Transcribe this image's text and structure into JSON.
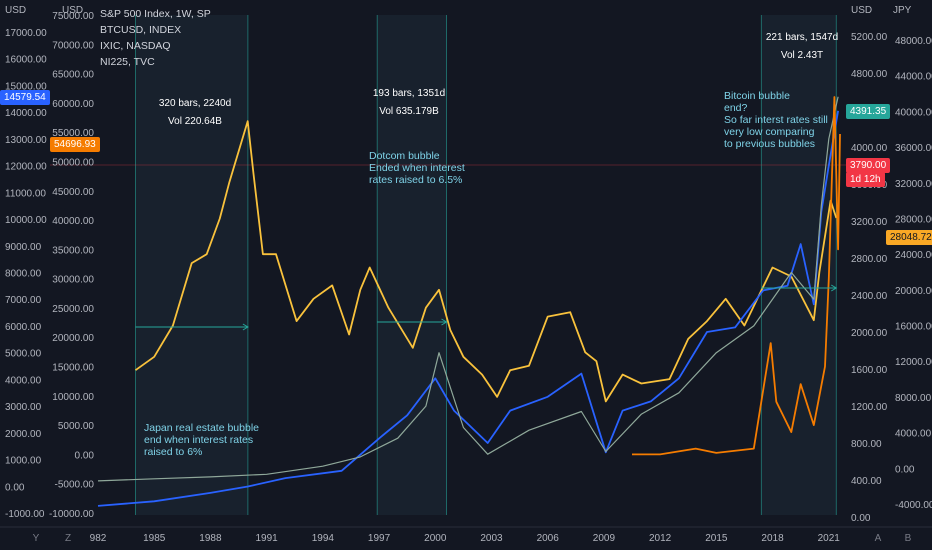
{
  "legend": [
    "S&P 500 Index, 1W, SP",
    "BTCUSD, INDEX",
    "IXIC, NASDAQ",
    "NI225, TVC"
  ],
  "axis_units": {
    "left1": "USD",
    "left2": "USD",
    "right1": "USD",
    "right2": "JPY"
  },
  "left_badges": {
    "blue": {
      "text": "14579.54",
      "color": "#2962ff"
    },
    "orange": {
      "text": "54696.93",
      "color": "#f57c00"
    }
  },
  "right_badges": {
    "blue": {
      "text": "4391.35",
      "color": "#26a69a"
    },
    "red": {
      "text": "3790.00",
      "color": "#f23645"
    },
    "red_sub": {
      "text": "1d 12h",
      "color": "#f23645"
    },
    "yellow": {
      "text": "28048.72",
      "color": "#f9a825"
    }
  },
  "measures": [
    {
      "bars": "320 bars, 2240d",
      "vol": "Vol 220.64B"
    },
    {
      "bars": "193 bars, 1351d",
      "vol": "Vol 635.179B"
    },
    {
      "bars": "221 bars, 1547d",
      "vol": "Vol 2.43T"
    }
  ],
  "notes": {
    "japan": "Japan real estate bubble\nend when interest rates\nraised to 6%",
    "dotcom": "Dotcom bubble\nEnded when interest\nrates raised to 6.5%",
    "bitcoin": "Bitcoin bubble\nend?\nSo far interst rates still\nvery low comparing\nto previous bubbles"
  },
  "footer_icons": [
    "Y",
    "Z",
    "A",
    "B"
  ],
  "chart_data": {
    "type": "line",
    "x_ticks": [
      "982",
      "1985",
      "1988",
      "1991",
      "1994",
      "1997",
      "2000",
      "2003",
      "2006",
      "2009",
      "2012",
      "2015",
      "2018",
      "2021"
    ],
    "axes": {
      "left1": {
        "unit": "USD",
        "ticks": [
          "17000.00",
          "16000.00",
          "15000.00",
          "14000.00",
          "13000.00",
          "12000.00",
          "11000.00",
          "10000.00",
          "9000.00",
          "8000.00",
          "7000.00",
          "6000.00",
          "5000.00",
          "4000.00",
          "3000.00",
          "2000.00",
          "1000.00",
          "0.00",
          "-1000.00"
        ]
      },
      "left2": {
        "unit": "USD",
        "ticks": [
          "75000.00",
          "70000.00",
          "65000.00",
          "60000.00",
          "55000.00",
          "50000.00",
          "45000.00",
          "40000.00",
          "35000.00",
          "30000.00",
          "25000.00",
          "20000.00",
          "15000.00",
          "10000.00",
          "5000.00",
          "0.00",
          "-5000.00",
          "-10000.00"
        ]
      },
      "right1": {
        "unit": "USD",
        "ticks": [
          "5200.00",
          "4800.00",
          "4400.00",
          "4000.00",
          "3600.00",
          "3200.00",
          "2800.00",
          "2400.00",
          "2000.00",
          "1600.00",
          "1200.00",
          "800.00",
          "400.00",
          "0.00"
        ]
      },
      "right2": {
        "unit": "JPY",
        "ticks": [
          "48000.00",
          "44000.00",
          "40000.00",
          "36000.00",
          "32000.00",
          "28000.00",
          "24000.00",
          "20000.00",
          "16000.00",
          "12000.00",
          "8000.00",
          "4000.00",
          "0.00",
          "-4000.00"
        ]
      }
    },
    "series": [
      {
        "name": "NI225",
        "color": "#f9c23c",
        "axis": "right2",
        "x": [
          1984.0,
          1985.0,
          1986.0,
          1987.0,
          1987.8,
          1988.5,
          1989.0,
          1989.99,
          1990.3,
          1990.8,
          1991.5,
          1992.6,
          1993.5,
          1994.5,
          1995.4,
          1996.0,
          1996.5,
          1997.5,
          1998.8,
          1999.5,
          2000.2,
          2000.8,
          2001.5,
          2002.5,
          2003.3,
          2004.0,
          2005.0,
          2006.0,
          2007.2,
          2008.0,
          2008.6,
          2009.1,
          2010.0,
          2011.0,
          2012.5,
          2013.5,
          2014.5,
          2015.5,
          2016.5,
          2018.0,
          2019.0,
          2020.2,
          2020.5,
          2021.1,
          2021.4
        ],
        "values": [
          11000,
          12500,
          16000,
          23000,
          24000,
          28000,
          32000,
          38900,
          33000,
          24000,
          24000,
          16500,
          19000,
          20500,
          15000,
          20000,
          22500,
          18000,
          13500,
          18000,
          20000,
          15500,
          12500,
          10500,
          8000,
          11000,
          11500,
          17000,
          17500,
          13000,
          12000,
          7500,
          10500,
          9500,
          10000,
          14500,
          16500,
          19000,
          16000,
          22500,
          21500,
          16600,
          22000,
          30000,
          28048.72
        ]
      },
      {
        "name": "S&P 500 Index",
        "color": "#2962ff",
        "axis": "right1",
        "x": [
          1982.0,
          1985.0,
          1988.0,
          1990.0,
          1992.0,
          1995.0,
          1997.0,
          1998.5,
          2000.0,
          2001.0,
          2002.8,
          2004.0,
          2006.0,
          2007.8,
          2009.1,
          2010.0,
          2011.5,
          2013.0,
          2014.5,
          2016.0,
          2017.5,
          2018.8,
          2019.5,
          2020.2,
          2020.6,
          2021.0,
          2021.5
        ],
        "values": [
          120,
          170,
          260,
          330,
          420,
          500,
          850,
          1100,
          1500,
          1150,
          800,
          1150,
          1300,
          1550,
          700,
          1150,
          1250,
          1500,
          2000,
          2050,
          2450,
          2500,
          2950,
          2300,
          3300,
          3800,
          4391.35
        ]
      },
      {
        "name": "IXIC",
        "color": "#8fa89a",
        "axis": "left1",
        "x": [
          1982.0,
          1985.0,
          1988.0,
          1991.0,
          1994.0,
          1996.0,
          1998.0,
          1999.5,
          2000.2,
          2001.5,
          2002.8,
          2005.0,
          2007.8,
          2009.1,
          2011.0,
          2013.0,
          2015.0,
          2017.0,
          2019.0,
          2020.2,
          2020.6,
          2021.0,
          2021.5
        ],
        "values": [
          200,
          280,
          350,
          450,
          750,
          1100,
          1800,
          3000,
          5000,
          2200,
          1200,
          2100,
          2800,
          1300,
          2700,
          3500,
          5000,
          6000,
          8000,
          7000,
          10500,
          13000,
          14579.54
        ]
      },
      {
        "name": "BTCUSD",
        "color": "#f57c00",
        "axis": "left2",
        "x": [
          2010.5,
          2012.0,
          2013.9,
          2015.0,
          2017.0,
          2017.9,
          2018.2,
          2019.0,
          2019.5,
          2020.2,
          2020.8,
          2021.0,
          2021.3,
          2021.5,
          2021.6
        ],
        "values": [
          0.1,
          5,
          1000,
          250,
          1000,
          19000,
          9000,
          3800,
          12000,
          5000,
          15000,
          30000,
          61000,
          35000,
          54696.93
        ]
      }
    ]
  }
}
